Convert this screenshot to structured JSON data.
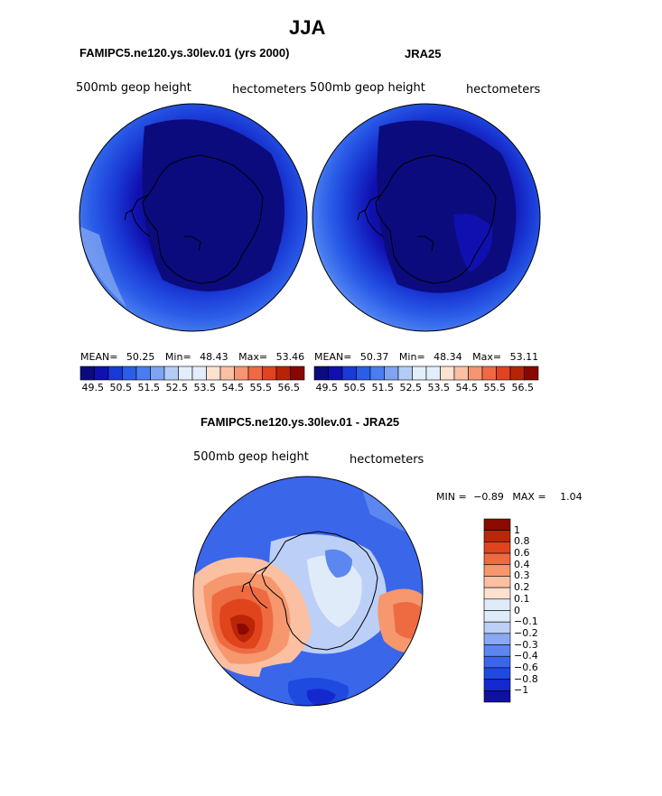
{
  "season": "JJA",
  "colors": {
    "scale12": [
      "#0b0b7e",
      "#1010b0",
      "#1a3ad6",
      "#2b5ee8",
      "#4a7ef0",
      "#7ea4f2",
      "#b4ccf5",
      "#e2eefb",
      "#fde2d2",
      "#fbc0a4",
      "#f59572",
      "#ef6a44",
      "#e2431e",
      "#b72405",
      "#880800"
    ],
    "diff": [
      "#1010a0",
      "#1428d0",
      "#1f4ae0",
      "#3a66ea",
      "#5c86f0",
      "#8aa8f3",
      "#bccff7",
      "#e0ebfa",
      "#fde0d0",
      "#fbbfa2",
      "#f6976e",
      "#ee6b42",
      "#e0441c",
      "#bb2508",
      "#8b0a00"
    ],
    "land_outline": "#000000"
  },
  "panels": [
    {
      "title": "FAMIPC5.ne120.ys.30lev.01 (yrs 2000)",
      "left_label": "500mb geop height",
      "right_label": "hectometers",
      "stats": {
        "mean_label": "MEAN=",
        "mean": "50.25",
        "min_label": "Min=",
        "min": "48.43",
        "max_label": "Max=",
        "max": "53.46"
      },
      "colorbar_ticks": [
        "49.5",
        "50.5",
        "51.5",
        "52.5",
        "53.5",
        "54.5",
        "55.5",
        "56.5"
      ]
    },
    {
      "title": "JRA25",
      "left_label": "500mb geop height",
      "right_label": "hectometers",
      "stats": {
        "mean_label": "MEAN=",
        "mean": "50.37",
        "min_label": "Min=",
        "min": "48.34",
        "max_label": "Max=",
        "max": "53.11"
      },
      "colorbar_ticks": [
        "49.5",
        "50.5",
        "51.5",
        "52.5",
        "53.5",
        "54.5",
        "55.5",
        "56.5"
      ]
    }
  ],
  "diff_panel": {
    "title": "FAMIPC5.ne120.ys.30lev.01 - JRA25",
    "left_label": "500mb geop height",
    "right_label": "hectometers",
    "min_label": "MIN =",
    "min": "−0.89",
    "max_label": "MAX =",
    "max": "1.04",
    "legend_ticks": [
      "1",
      "0.8",
      "0.6",
      "0.4",
      "0.3",
      "0.2",
      "0.1",
      "0",
      "−0.1",
      "−0.2",
      "−0.3",
      "−0.4",
      "−0.6",
      "−0.8",
      "−1"
    ]
  },
  "chart_data": [
    {
      "type": "heatmap",
      "projection": "south polar stereographic",
      "title": "FAMIPC5.ne120.ys.30lev.01 (yrs 2000)",
      "variable": "500mb geop height",
      "units": "hectometers",
      "mean": 50.25,
      "min": 48.43,
      "max": 53.46,
      "contour_levels": [
        49.5,
        50,
        50.5,
        51,
        51.5,
        52,
        52.5,
        53,
        53.5,
        54,
        54.5,
        55,
        55.5,
        56,
        56.5
      ]
    },
    {
      "type": "heatmap",
      "projection": "south polar stereographic",
      "title": "JRA25",
      "variable": "500mb geop height",
      "units": "hectometers",
      "mean": 50.37,
      "min": 48.34,
      "max": 53.11,
      "contour_levels": [
        49.5,
        50,
        50.5,
        51,
        51.5,
        52,
        52.5,
        53,
        53.5,
        54,
        54.5,
        55,
        55.5,
        56,
        56.5
      ]
    },
    {
      "type": "heatmap",
      "projection": "south polar stereographic",
      "title": "FAMIPC5.ne120.ys.30lev.01 - JRA25",
      "variable": "500mb geop height",
      "units": "hectometers",
      "min": -0.89,
      "max": 1.04,
      "contour_levels": [
        -1,
        -0.8,
        -0.6,
        -0.4,
        -0.3,
        -0.2,
        -0.1,
        0,
        0.1,
        0.2,
        0.3,
        0.4,
        0.6,
        0.8,
        1
      ]
    }
  ]
}
